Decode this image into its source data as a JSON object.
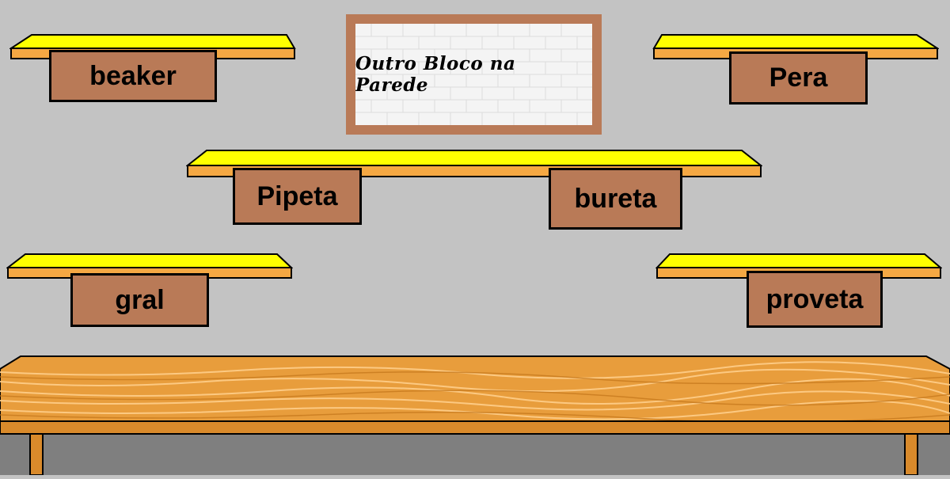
{
  "wall_sign": {
    "title": "Outro Bloco na Parede"
  },
  "blocks": {
    "beaker": "beaker",
    "pera": "Pera",
    "pipeta": "Pipeta",
    "bureta": "bureta",
    "gral": "gral",
    "proveta": "proveta"
  },
  "colors": {
    "wall": "#c3c3c3",
    "block": "#b97a57",
    "shelf_top": "#ffff00",
    "shelf_front": "#f5a843",
    "table_wood": "#e79a33",
    "floor": "#7f7f7f"
  }
}
